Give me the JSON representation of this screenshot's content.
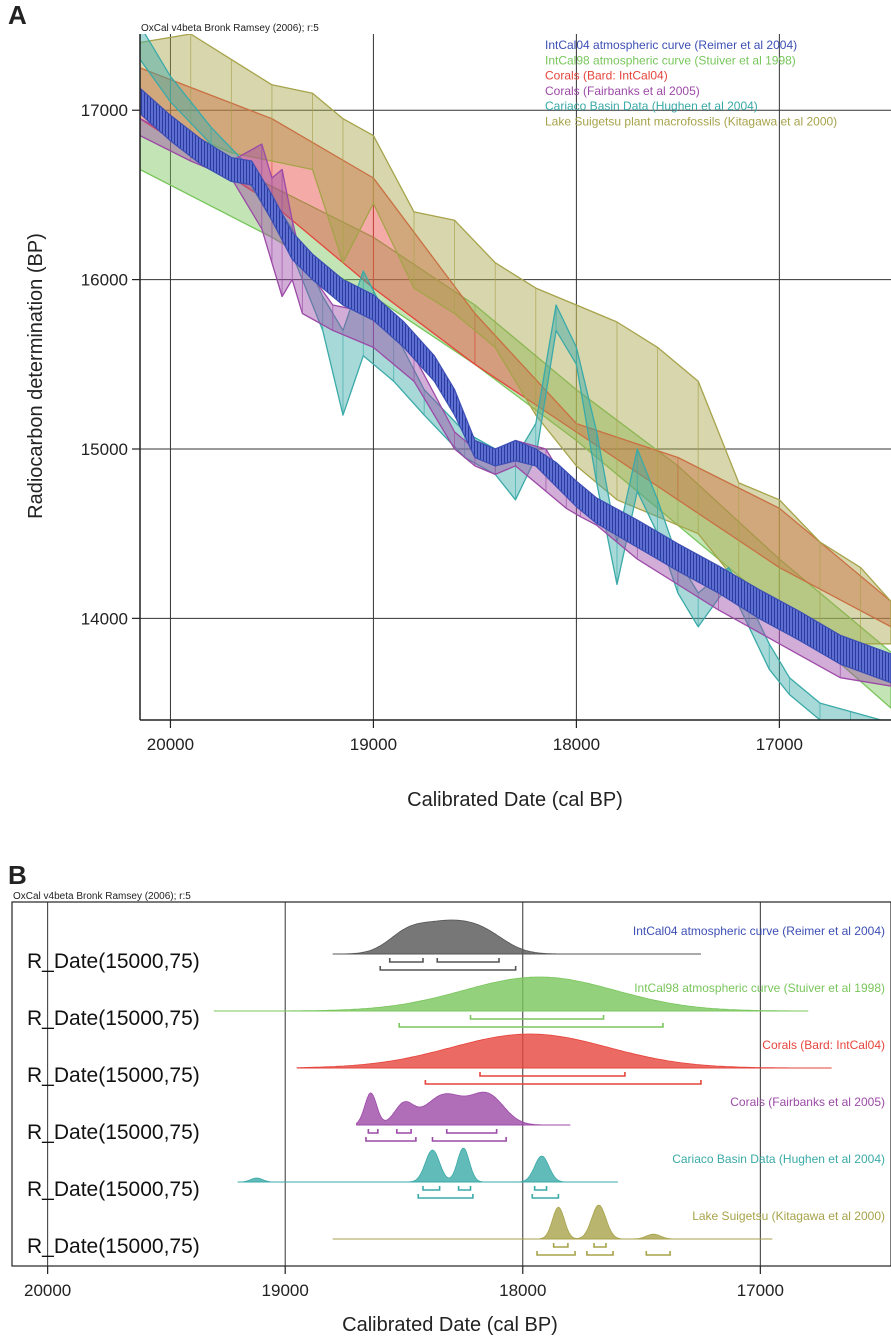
{
  "colors": {
    "intcal04": "#3d4fb5",
    "intcal98": "#79c65c",
    "bard": "#e6453c",
    "fairbanks": "#9c4aa7",
    "cariaco": "#3aaaa8",
    "suigetsu": "#a7a34a",
    "panelB_intcal04": "#555555"
  },
  "chart_data": [
    {
      "type": "area",
      "panel_label": "A",
      "credit": "OxCal v4beta Bronk Ramsey (2006); r:5",
      "xlabel": "Calibrated Date (cal BP)",
      "ylabel": "Radiocarbon determination (BP)",
      "xlim": [
        20150,
        16450
      ],
      "ylim": [
        13400,
        17450
      ],
      "x_reversed": true,
      "x_ticks": [
        20000,
        19000,
        18000,
        17000
      ],
      "y_ticks": [
        14000,
        15000,
        16000,
        17000
      ],
      "grid": true,
      "legend_position": "top-right",
      "series": [
        {
          "key": "intcal98",
          "name": "IntCal98 atmospheric curve (Stuiver et al 1998)",
          "x": [
            20150,
            19500,
            19000,
            18500,
            18000,
            17500,
            17000,
            16450
          ],
          "lo": [
            16650,
            16250,
            15900,
            15500,
            15050,
            14550,
            14050,
            13470
          ],
          "hi": [
            16950,
            16550,
            16250,
            15850,
            15350,
            14900,
            14350,
            13800
          ]
        },
        {
          "key": "bard",
          "name": "Corals (Bard: IntCal04)",
          "x": [
            20150,
            19500,
            19000,
            18500,
            18000,
            17500,
            17000,
            16450
          ],
          "lo": [
            16950,
            16450,
            15950,
            15500,
            15100,
            14700,
            14300,
            13950
          ],
          "hi": [
            17250,
            16950,
            16600,
            15800,
            15150,
            14950,
            14650,
            14100
          ]
        },
        {
          "key": "suigetsu",
          "name": "Lake Suigetsu plant macrofossils (Kitagawa et al 2000)",
          "x": [
            20150,
            19900,
            19700,
            19500,
            19300,
            19150,
            19000,
            18800,
            18600,
            18400,
            18200,
            18000,
            17800,
            17600,
            17400,
            17200,
            17000,
            16800,
            16600,
            16450
          ],
          "lo": [
            17000,
            16850,
            16750,
            16700,
            16650,
            16100,
            16450,
            15950,
            15800,
            15600,
            15200,
            14900,
            14700,
            14600,
            14500,
            14200,
            14000,
            13900,
            13850,
            13850
          ],
          "hi": [
            17400,
            17450,
            17300,
            17150,
            17100,
            16950,
            16850,
            16400,
            16350,
            16100,
            15950,
            15850,
            15750,
            15600,
            15400,
            14800,
            14700,
            14450,
            14300,
            14100
          ]
        },
        {
          "key": "cariaco",
          "name": "Cariaco Basin Data  (Hughen et al 2004)",
          "x": [
            20150,
            20000,
            19800,
            19600,
            19400,
            19250,
            19150,
            19050,
            18900,
            18750,
            18550,
            18400,
            18300,
            18200,
            18100,
            18000,
            17900,
            17800,
            17700,
            17600,
            17500,
            17400,
            17250,
            17150,
            17050,
            16950,
            16800,
            16650,
            16500,
            16450
          ],
          "lo": [
            17300,
            17050,
            16800,
            16550,
            16150,
            15700,
            15200,
            15550,
            15400,
            15200,
            14950,
            14850,
            14700,
            14950,
            15700,
            15500,
            14800,
            14200,
            14750,
            14500,
            14150,
            13950,
            14200,
            13950,
            13700,
            13550,
            13400,
            13350,
            13350,
            13350
          ],
          "hi": [
            17500,
            17200,
            16900,
            16650,
            16300,
            15900,
            15700,
            16050,
            15700,
            15350,
            15100,
            15000,
            14950,
            15150,
            15850,
            15600,
            15100,
            14450,
            15000,
            14700,
            14350,
            14150,
            14300,
            14100,
            13850,
            13650,
            13500,
            13450,
            13400,
            13400
          ]
        },
        {
          "key": "fairbanks",
          "name": "Corals (Fairbanks et al 2005)",
          "x": [
            20150,
            19900,
            19700,
            19550,
            19500,
            19450,
            19400,
            19350,
            19200,
            19000,
            18800,
            18600,
            18500,
            18400,
            18300,
            18150,
            18050,
            17980,
            17900,
            17700,
            17500,
            17300,
            17000,
            16700,
            16450
          ],
          "lo": [
            16850,
            16700,
            16600,
            16300,
            16100,
            15900,
            16000,
            15800,
            15700,
            15600,
            15400,
            15000,
            14900,
            14850,
            14900,
            14750,
            14650,
            14600,
            14550,
            14350,
            14200,
            14050,
            13850,
            13650,
            13600
          ],
          "hi": [
            16950,
            16800,
            16700,
            16800,
            16600,
            16650,
            16350,
            16100,
            15850,
            15800,
            15550,
            15100,
            15000,
            14950,
            15050,
            15000,
            14800,
            14700,
            14650,
            14500,
            14350,
            14200,
            14000,
            13850,
            13750
          ]
        },
        {
          "key": "intcal04",
          "name": "IntCal04 atmospheric curve (Reimer et al 2004)",
          "x": [
            20150,
            20000,
            19850,
            19700,
            19600,
            19500,
            19400,
            19300,
            19150,
            19000,
            18850,
            18700,
            18600,
            18500,
            18400,
            18300,
            18200,
            18100,
            18000,
            17900,
            17700,
            17500,
            17300,
            17100,
            16900,
            16700,
            16450
          ],
          "lo": [
            16980,
            16820,
            16680,
            16580,
            16560,
            16350,
            16120,
            16000,
            15850,
            15760,
            15600,
            15400,
            15200,
            14950,
            14900,
            14930,
            14900,
            14780,
            14660,
            14560,
            14420,
            14280,
            14150,
            14000,
            13870,
            13730,
            13620
          ],
          "hi": [
            17130,
            16970,
            16830,
            16720,
            16700,
            16500,
            16280,
            16150,
            16000,
            15910,
            15750,
            15550,
            15350,
            15050,
            15000,
            15050,
            15000,
            14920,
            14810,
            14710,
            14580,
            14440,
            14310,
            14170,
            14040,
            13900,
            13790
          ]
        }
      ]
    },
    {
      "type": "area",
      "panel_label": "B",
      "credit": "OxCal v4beta Bronk Ramsey (2006); r:5",
      "xlabel": "Calibrated Date (cal BP)",
      "xlim": [
        20150,
        16450
      ],
      "x_reversed": true,
      "x_ticks": [
        20000,
        19000,
        18000,
        17000
      ],
      "grid": "vertical",
      "rows": [
        {
          "label": "R_Date(15000,75)",
          "series_name": "IntCal04 atmospheric curve (Reimer et al 2004)",
          "color_key": "panelB_intcal04",
          "label_color_key": "intcal04",
          "baseline_range": [
            18800,
            17250
          ],
          "peaks": [
            {
              "center": 18480,
              "width": 85,
              "height": 0.8
            },
            {
              "center": 18330,
              "width": 90,
              "height": 0.8
            },
            {
              "center": 18180,
              "width": 100,
              "height": 0.85
            }
          ],
          "ranges_68": [
            [
              18560,
              18420
            ],
            [
              18360,
              18100
            ]
          ],
          "ranges_95": [
            [
              18600,
              18030
            ]
          ]
        },
        {
          "label": "R_Date(15000,75)",
          "series_name": "IntCal98 atmospheric curve (Stuiver et al 1998)",
          "color_key": "intcal98",
          "label_color_key": "intcal98",
          "baseline_range": [
            19300,
            16800
          ],
          "peaks": [
            {
              "center": 17930,
              "width": 320,
              "height": 0.85
            }
          ],
          "ranges_68": [
            [
              18220,
              17660
            ]
          ],
          "ranges_95": [
            [
              18520,
              17410
            ]
          ]
        },
        {
          "label": "R_Date(15000,75)",
          "series_name": "Corals (Bard: IntCal04)",
          "color_key": "bard",
          "label_color_key": "bard",
          "baseline_range": [
            18950,
            16700
          ],
          "peaks": [
            {
              "center": 17970,
              "width": 330,
              "height": 0.85
            }
          ],
          "ranges_68": [
            [
              18180,
              17570
            ]
          ],
          "ranges_95": [
            [
              18410,
              17250
            ]
          ]
        },
        {
          "label": "R_Date(15000,75)",
          "series_name": "Corals (Fairbanks et al 2005)",
          "color_key": "fairbanks",
          "label_color_key": "fairbanks",
          "baseline_range": [
            18700,
            17800
          ],
          "peaks": [
            {
              "center": 18640,
              "width": 25,
              "height": 0.8
            },
            {
              "center": 18500,
              "width": 40,
              "height": 0.5
            },
            {
              "center": 18330,
              "width": 80,
              "height": 0.75
            },
            {
              "center": 18150,
              "width": 70,
              "height": 0.75
            }
          ],
          "ranges_68": [
            [
              18650,
              18610
            ],
            [
              18530,
              18470
            ],
            [
              18320,
              18110
            ]
          ],
          "ranges_95": [
            [
              18660,
              18450
            ],
            [
              18380,
              18070
            ]
          ]
        },
        {
          "label": "R_Date(15000,75)",
          "series_name": "Cariaco Basin Data  (Hughen et al 2004)",
          "color_key": "cariaco",
          "label_color_key": "cariaco",
          "baseline_range": [
            19200,
            17600
          ],
          "peaks": [
            {
              "center": 19120,
              "width": 25,
              "height": 0.1
            },
            {
              "center": 18380,
              "width": 30,
              "height": 0.8
            },
            {
              "center": 18250,
              "width": 25,
              "height": 0.85
            },
            {
              "center": 17920,
              "width": 30,
              "height": 0.65
            }
          ],
          "ranges_68": [
            [
              18420,
              18350
            ],
            [
              18270,
              18220
            ],
            [
              17950,
              17900
            ]
          ],
          "ranges_95": [
            [
              18440,
              18210
            ],
            [
              17960,
              17850
            ]
          ]
        },
        {
          "label": "R_Date(15000,75)",
          "series_name": "Lake Suigetsu (Kitagawa et al 2000)",
          "color_key": "suigetsu",
          "label_color_key": "suigetsu",
          "baseline_range": [
            18800,
            16950
          ],
          "peaks": [
            {
              "center": 17850,
              "width": 25,
              "height": 0.8
            },
            {
              "center": 17680,
              "width": 30,
              "height": 0.85
            },
            {
              "center": 17450,
              "width": 30,
              "height": 0.12
            }
          ],
          "ranges_68": [
            [
              17870,
              17810
            ],
            [
              17700,
              17650
            ]
          ],
          "ranges_95": [
            [
              17940,
              17780
            ],
            [
              17730,
              17620
            ],
            [
              17480,
              17380
            ]
          ]
        }
      ]
    }
  ]
}
